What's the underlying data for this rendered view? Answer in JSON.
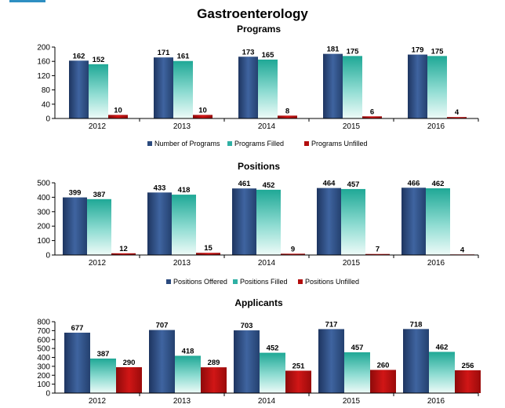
{
  "title": "Gastroenterology",
  "colors": {
    "navy": "#2b4a7e",
    "teal": "#2fb0a4",
    "red": "#b30d0d"
  },
  "chart_data": [
    {
      "type": "bar",
      "title": "Programs",
      "categories": [
        "2012",
        "2013",
        "2014",
        "2015",
        "2016"
      ],
      "ylim": [
        0,
        200
      ],
      "yticks": [
        0,
        40,
        80,
        120,
        160,
        200
      ],
      "legend_position": "bottom",
      "series": [
        {
          "name": "Number of Programs",
          "values": [
            162,
            171,
            173,
            181,
            179
          ]
        },
        {
          "name": "Programs Filled",
          "values": [
            152,
            161,
            165,
            175,
            175
          ]
        },
        {
          "name": "Programs Unfilled",
          "values": [
            10,
            10,
            8,
            6,
            4
          ]
        }
      ]
    },
    {
      "type": "bar",
      "title": "Positions",
      "categories": [
        "2012",
        "2013",
        "2014",
        "2015",
        "2016"
      ],
      "ylim": [
        0,
        500
      ],
      "yticks": [
        0,
        100,
        200,
        300,
        400,
        500
      ],
      "legend_position": "bottom",
      "series": [
        {
          "name": "Positions Offered",
          "values": [
            399,
            433,
            461,
            464,
            466
          ]
        },
        {
          "name": "Positions Filled",
          "values": [
            387,
            418,
            452,
            457,
            462
          ]
        },
        {
          "name": "Positions Unfilled",
          "values": [
            12,
            15,
            9,
            7,
            4
          ]
        }
      ]
    },
    {
      "type": "bar",
      "title": "Applicants",
      "categories": [
        "2012",
        "2013",
        "2014",
        "2015",
        "2016"
      ],
      "ylim": [
        0,
        800
      ],
      "yticks": [
        0,
        100,
        200,
        300,
        400,
        500,
        600,
        700,
        800
      ],
      "legend_position": "none",
      "series": [
        {
          "values": [
            677,
            707,
            703,
            717,
            718
          ]
        },
        {
          "values": [
            387,
            418,
            452,
            457,
            462
          ]
        },
        {
          "values": [
            290,
            289,
            251,
            260,
            256
          ]
        }
      ]
    }
  ]
}
